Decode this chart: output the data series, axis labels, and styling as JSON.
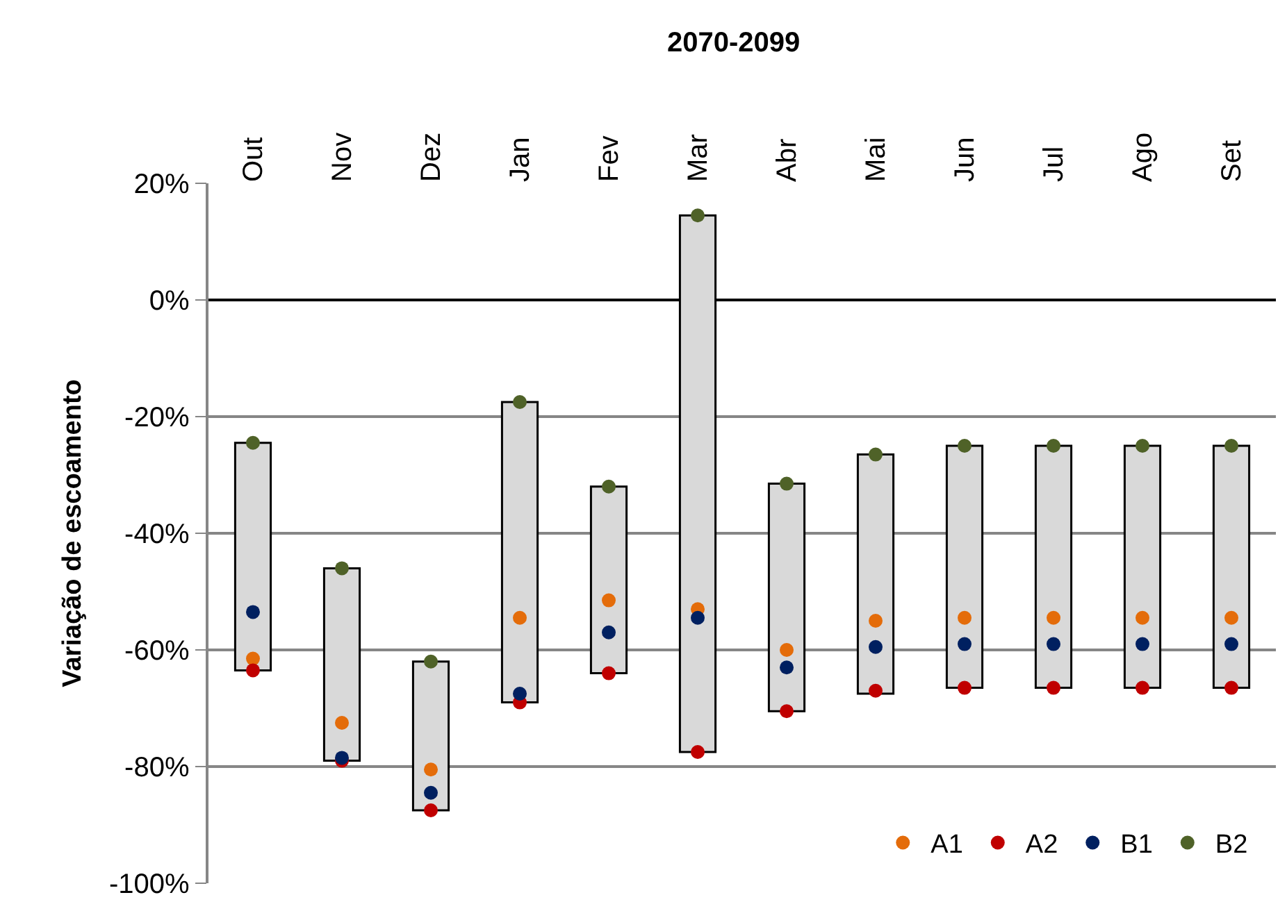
{
  "chart_data": {
    "type": "bar",
    "title": "2070-2099",
    "ylabel": "Variação de escoamento",
    "categories": [
      "Out",
      "Nov",
      "Dez",
      "Jan",
      "Fev",
      "Mar",
      "Abr",
      "Mai",
      "Jun",
      "Jul",
      "Ago",
      "Set"
    ],
    "series": [
      {
        "color": "#d9d9d9",
        "base": [
          -63.5,
          -79,
          -87.5,
          -69,
          -64,
          -77.5,
          -70.5,
          -67.5,
          -66.5,
          -66.5,
          -66.5,
          -66.5
        ],
        "values": [
          39,
          33,
          25.5,
          51.5,
          32,
          92,
          39,
          41,
          41.5,
          41.5,
          41.5,
          41.5
        ]
      },
      {
        "type": "scatter",
        "name": "A1",
        "color": "#e46c0a",
        "values": [
          -61.5,
          -72.5,
          -80.5,
          -54.5,
          -51.5,
          -53,
          -60,
          -55,
          -54.5,
          -54.5,
          -54.5,
          -54.5
        ]
      },
      {
        "type": "scatter",
        "name": "A2",
        "color": "#c00000",
        "values": [
          -63.5,
          -79,
          -87.5,
          -69,
          -64,
          -77.5,
          -70.5,
          -67,
          -66.5,
          -66.5,
          -66.5,
          -66.5
        ]
      },
      {
        "type": "scatter",
        "name": "B1",
        "color": "#002060",
        "values": [
          -53.5,
          -78.5,
          -84.5,
          -67.5,
          -57,
          -54.5,
          -63,
          -59.5,
          -59,
          -59,
          -59,
          -59
        ]
      },
      {
        "type": "scatter",
        "name": "B2",
        "color": "#4f6228",
        "values": [
          -24.5,
          -46,
          -62,
          -17.5,
          -32,
          14.5,
          -31.5,
          -26.5,
          -25,
          -25,
          -25,
          -25
        ]
      }
    ],
    "ylim": [
      -100,
      20
    ],
    "yticks": [
      {
        "value": -100,
        "label": "-100%"
      },
      {
        "value": -80,
        "label": "-80%"
      },
      {
        "value": -60,
        "label": "-60%"
      },
      {
        "value": -40,
        "label": "-40%"
      },
      {
        "value": -20,
        "label": "-20%"
      },
      {
        "value": 0,
        "label": "0%"
      },
      {
        "value": 20,
        "label": "20%"
      }
    ],
    "grid": "y",
    "legend": "bottom right",
    "marker": "circle"
  }
}
